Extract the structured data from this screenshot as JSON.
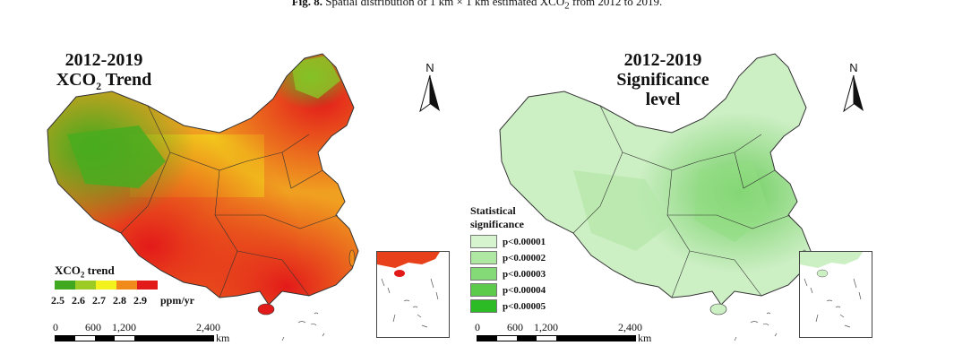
{
  "caption": {
    "label": "Fig. 8.",
    "text": "Spatial distribution of 1 km × 1 km estimated XCO",
    "sub": "2",
    "text2": " from 2012 to 2019."
  },
  "left_map": {
    "title_line1": "2012-2019",
    "title_line2": "XCO",
    "title_sub": "2",
    "title_line2b": " Trend",
    "north_label": "N",
    "legend_title": "XCO",
    "legend_title_sub": "2",
    "legend_title_b": " trend",
    "legend_values": [
      "2.5",
      "2.6",
      "2.7",
      "2.8",
      "2.9"
    ],
    "legend_unit": "ppm/yr",
    "legend_colors": [
      "#3fa81e",
      "#9ccc24",
      "#f3f21c",
      "#f08a1a",
      "#e31a1a"
    ],
    "scale_ticks": [
      "0",
      "600",
      "1,200",
      "2,400"
    ],
    "scale_unit": "km"
  },
  "right_map": {
    "title_line1": "2012-2019",
    "title_line2": "Significance",
    "title_line3": "level",
    "north_label": "N",
    "legend_title_line1": "Statistical",
    "legend_title_line2": "significance",
    "legend_items": [
      {
        "label": "p<0.00001",
        "color": "#d6f5cf"
      },
      {
        "label": "p<0.00002",
        "color": "#aee8a2"
      },
      {
        "label": "p<0.00003",
        "color": "#84da76"
      },
      {
        "label": "p<0.00004",
        "color": "#5ccb4c"
      },
      {
        "label": "p<0.00005",
        "color": "#2dbb25"
      }
    ],
    "scale_ticks": [
      "0",
      "600",
      "1,200",
      "2,400"
    ],
    "scale_unit": "km"
  }
}
